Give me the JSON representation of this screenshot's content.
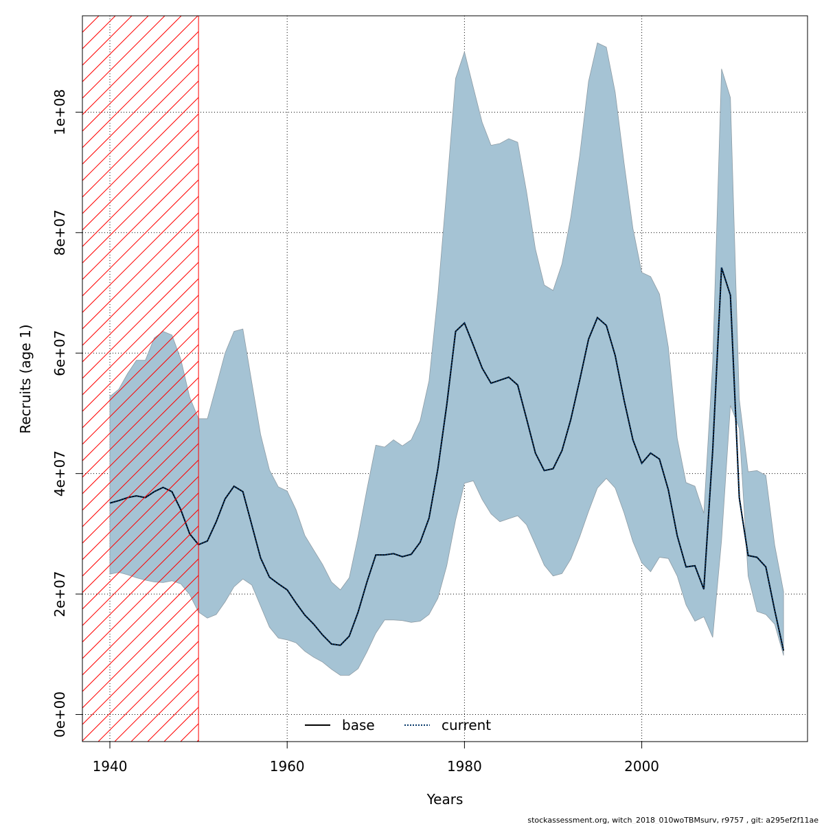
{
  "chart_data": {
    "type": "area",
    "xlabel": "Years",
    "ylabel": "Recruits (age 1)",
    "xlim": [
      1936.9,
      2018.7
    ],
    "ylim": [
      -4500000,
      116000000
    ],
    "x_ticks": [
      1940,
      1960,
      1980,
      2000
    ],
    "x_tick_labels": [
      "1940",
      "1960",
      "1980",
      "2000"
    ],
    "y_ticks": [
      0,
      20000000,
      40000000,
      60000000,
      80000000,
      100000000
    ],
    "y_tick_labels": [
      "0e+00",
      "2e+07",
      "4e+07",
      "6e+07",
      "8e+07",
      "1e+08"
    ],
    "grid": true,
    "legend_position": "bottom",
    "footer": "stockassessment.org, witch_2018_010woTBMsurv, r9757 , git: a295ef2f11ae",
    "shaded_region": {
      "x_from": 1936.9,
      "x_to": 1950,
      "pattern": "hatch",
      "color": "#ff0000"
    },
    "colors": {
      "band": "#a5c3d4",
      "band_edge": "#8d9ba4",
      "current": "#003366",
      "base": "#000000",
      "hatch": "#ff0000"
    },
    "x": [
      1940,
      1941,
      1942,
      1943,
      1944,
      1945,
      1946,
      1947,
      1948,
      1949,
      1950,
      1951,
      1952,
      1953,
      1954,
      1955,
      1956,
      1957,
      1958,
      1959,
      1960,
      1961,
      1962,
      1963,
      1964,
      1965,
      1966,
      1967,
      1968,
      1969,
      1970,
      1971,
      1972,
      1973,
      1974,
      1975,
      1976,
      1977,
      1978,
      1979,
      1980,
      1981,
      1982,
      1983,
      1984,
      1985,
      1986,
      1987,
      1988,
      1989,
      1990,
      1991,
      1992,
      1993,
      1994,
      1995,
      1996,
      1997,
      1998,
      1999,
      2000,
      2001,
      2002,
      2003,
      2004,
      2005,
      2006,
      2007,
      2008,
      2009,
      2010,
      2011,
      2012,
      2013,
      2014,
      2015,
      2016
    ],
    "series": [
      {
        "name": "base",
        "style": "solid",
        "values": [
          35100000,
          35500000,
          36000000,
          36300000,
          36000000,
          37000000,
          37700000,
          37000000,
          34000000,
          30000000,
          28200000,
          28800000,
          32000000,
          35800000,
          37900000,
          37000000,
          31500000,
          26000000,
          22800000,
          21700000,
          20700000,
          18500000,
          16500000,
          15000000,
          13200000,
          11700000,
          11500000,
          13000000,
          17000000,
          22000000,
          26500000,
          26500000,
          26700000,
          26200000,
          26600000,
          28600000,
          32600000,
          40800000,
          51400000,
          63600000,
          65000000,
          61300000,
          57500000,
          55000000,
          55500000,
          56000000,
          54700000,
          49100000,
          43400000,
          40500000,
          40800000,
          43800000,
          49000000,
          55500000,
          62300000,
          65900000,
          64600000,
          59600000,
          52200000,
          45600000,
          41700000,
          43400000,
          42400000,
          37300000,
          29700000,
          24500000,
          24700000,
          20800000,
          43800000,
          74200000,
          69600000,
          36000000,
          26400000,
          26100000,
          24500000,
          17300000,
          10600000
        ]
      },
      {
        "name": "current",
        "style": "dotted",
        "values": [
          35100000,
          35500000,
          36000000,
          36300000,
          36000000,
          37000000,
          37700000,
          37000000,
          34000000,
          30000000,
          28200000,
          28800000,
          32000000,
          35800000,
          37900000,
          37000000,
          31500000,
          26000000,
          22800000,
          21700000,
          20700000,
          18500000,
          16500000,
          15000000,
          13200000,
          11700000,
          11500000,
          13000000,
          17000000,
          22000000,
          26500000,
          26500000,
          26700000,
          26200000,
          26600000,
          28600000,
          32600000,
          40800000,
          51400000,
          63600000,
          65000000,
          61300000,
          57500000,
          55000000,
          55500000,
          56000000,
          54700000,
          49100000,
          43400000,
          40500000,
          40800000,
          43800000,
          49000000,
          55500000,
          62300000,
          65900000,
          64600000,
          59600000,
          52200000,
          45600000,
          41700000,
          43400000,
          42400000,
          37300000,
          29700000,
          24500000,
          24700000,
          20800000,
          43800000,
          74200000,
          69600000,
          36000000,
          26400000,
          26100000,
          24500000,
          17300000,
          10600000
        ]
      }
    ],
    "confidence_band": {
      "upper": [
        52800000,
        54000000,
        56600000,
        58800000,
        58800000,
        62500000,
        63600000,
        63000000,
        59000000,
        52700000,
        49100000,
        49100000,
        54500000,
        60000000,
        63600000,
        64000000,
        55200000,
        46500000,
        40600000,
        37800000,
        37100000,
        34000000,
        29700000,
        27300000,
        24900000,
        22000000,
        20700000,
        22700000,
        29600000,
        37400000,
        44700000,
        44400000,
        45600000,
        44600000,
        45600000,
        48800000,
        55400000,
        69700000,
        87200000,
        105600000,
        110000000,
        104100000,
        98300000,
        94500000,
        94800000,
        95600000,
        95000000,
        86800000,
        77300000,
        71300000,
        70400000,
        74800000,
        82600000,
        92800000,
        105100000,
        111500000,
        110800000,
        103300000,
        91600000,
        80700000,
        73400000,
        72700000,
        69800000,
        61000000,
        45900000,
        38500000,
        37900000,
        33400000,
        58400000,
        107200000,
        102400000,
        52400000,
        40300000,
        40500000,
        39700000,
        28100000,
        20400000
      ],
      "lower": [
        23300000,
        23600000,
        23200000,
        22700000,
        22300000,
        22000000,
        21900000,
        22200000,
        21700000,
        19900000,
        17000000,
        16000000,
        16600000,
        18700000,
        21200000,
        22500000,
        21500000,
        18000000,
        14500000,
        12700000,
        12400000,
        11900000,
        10500000,
        9500000,
        8700000,
        7500000,
        6500000,
        6500000,
        7600000,
        10400000,
        13500000,
        15700000,
        15700000,
        15600000,
        15300000,
        15500000,
        16600000,
        19300000,
        24700000,
        32300000,
        38400000,
        38800000,
        35700000,
        33300000,
        32000000,
        32500000,
        33000000,
        31500000,
        28200000,
        24800000,
        23000000,
        23400000,
        25800000,
        29500000,
        33700000,
        37600000,
        39200000,
        37600000,
        33500000,
        28700000,
        25200000,
        23700000,
        26100000,
        25900000,
        23000000,
        18200000,
        15500000,
        16200000,
        12800000,
        28900000,
        51300000,
        47500000,
        23000000,
        17100000,
        16600000,
        15000000,
        9800000
      ]
    }
  }
}
